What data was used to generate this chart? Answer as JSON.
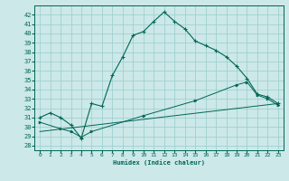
{
  "xlabel": "Humidex (Indice chaleur)",
  "bg_color": "#cce8e8",
  "grid_color": "#99cccc",
  "line_color": "#006655",
  "xlim": [
    -0.5,
    23.5
  ],
  "ylim": [
    27.5,
    43.0
  ],
  "yticks": [
    28,
    29,
    30,
    31,
    32,
    33,
    34,
    35,
    36,
    37,
    38,
    39,
    40,
    41,
    42
  ],
  "xticks": [
    0,
    1,
    2,
    3,
    4,
    5,
    6,
    7,
    8,
    9,
    10,
    11,
    12,
    13,
    14,
    15,
    16,
    17,
    18,
    19,
    20,
    21,
    22,
    23
  ],
  "main_line": [
    [
      0,
      31.0
    ],
    [
      1,
      31.5
    ],
    [
      2,
      31.0
    ],
    [
      3,
      30.2
    ],
    [
      4,
      28.8
    ],
    [
      5,
      32.5
    ],
    [
      6,
      32.2
    ],
    [
      7,
      35.5
    ],
    [
      8,
      37.5
    ],
    [
      9,
      39.8
    ],
    [
      10,
      40.2
    ],
    [
      11,
      41.3
    ],
    [
      12,
      42.3
    ],
    [
      13,
      41.3
    ],
    [
      14,
      40.5
    ],
    [
      15,
      39.2
    ],
    [
      16,
      38.7
    ],
    [
      17,
      38.2
    ],
    [
      18,
      37.5
    ],
    [
      19,
      36.5
    ],
    [
      20,
      35.2
    ],
    [
      21,
      33.5
    ],
    [
      22,
      33.2
    ],
    [
      23,
      32.5
    ]
  ],
  "line2_x": [
    0,
    2,
    3,
    4,
    5,
    10,
    15,
    19,
    20,
    21,
    22,
    23
  ],
  "line2_y": [
    30.5,
    29.8,
    29.5,
    28.9,
    29.5,
    31.2,
    32.8,
    34.5,
    34.8,
    33.4,
    33.0,
    32.3
  ],
  "line3_x": [
    0,
    23
  ],
  "line3_y": [
    29.5,
    32.5
  ],
  "label_fontsize": 5.0,
  "tick_fontsize": 4.5
}
